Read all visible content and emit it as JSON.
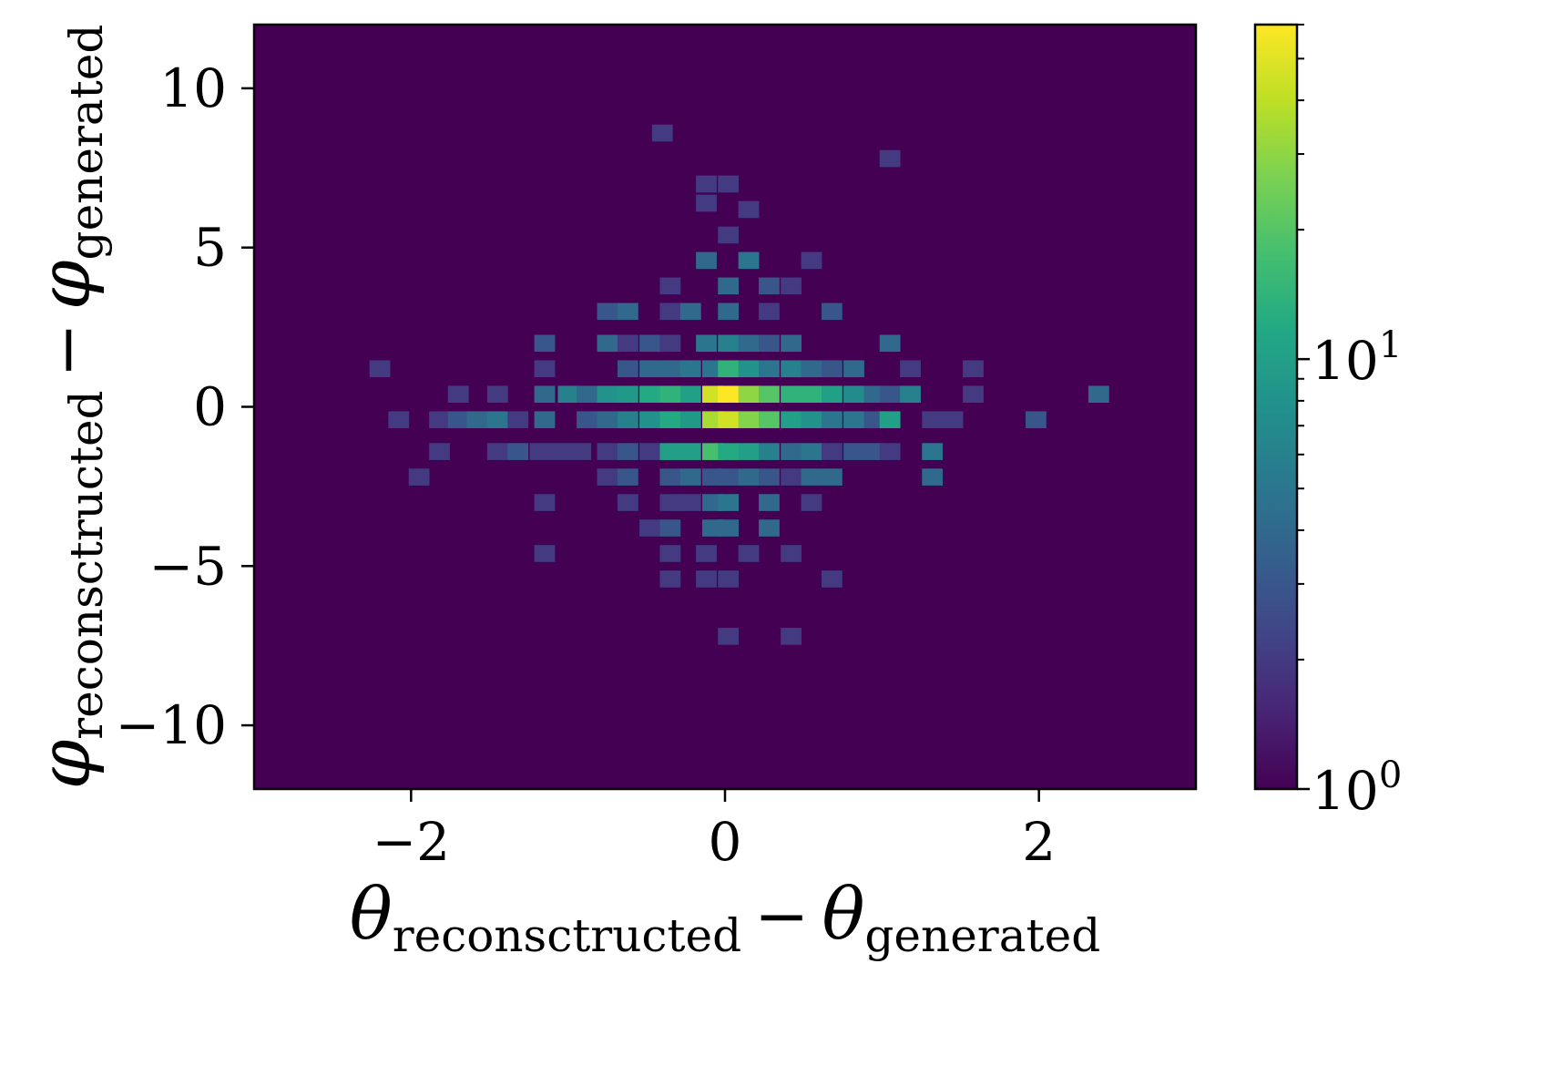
{
  "chart_data": {
    "type": "heatmap",
    "title": "",
    "xlabel": {
      "main": "θ",
      "sub1": "reconsctructed",
      "minus": "−",
      "main2": "θ",
      "sub2": "generated"
    },
    "ylabel": {
      "main": "φ",
      "sub1": "reconsctructed",
      "minus": "−",
      "main2": "φ",
      "sub2": "generated"
    },
    "xlim": [
      -3,
      3
    ],
    "ylim": [
      -12,
      12
    ],
    "x_bin_width": 0.13,
    "y_bin_width": 0.52,
    "x_ticks": [
      {
        "value": -2,
        "label": "−2"
      },
      {
        "value": 0,
        "label": "0"
      },
      {
        "value": 2,
        "label": "2"
      }
    ],
    "y_ticks": [
      {
        "value": 10,
        "label": "10"
      },
      {
        "value": 5,
        "label": "5"
      },
      {
        "value": 0,
        "label": "0"
      },
      {
        "value": -5,
        "label": "−5"
      },
      {
        "value": -10,
        "label": "−10"
      }
    ],
    "colorbar": {
      "scale": "log",
      "colormap": "viridis",
      "range": [
        1,
        60
      ],
      "ticks": [
        {
          "value": 1,
          "label": "10",
          "exp": "0"
        },
        {
          "value": 10,
          "label": "10",
          "exp": "1"
        }
      ]
    },
    "background_color": "#440154",
    "bins": [
      {
        "x": -0.4,
        "y": 8.6,
        "count": 2
      },
      {
        "x": 1.05,
        "y": 7.8,
        "count": 2
      },
      {
        "x": -0.12,
        "y": 7.0,
        "count": 2
      },
      {
        "x": 0.02,
        "y": 7.0,
        "count": 2
      },
      {
        "x": -0.12,
        "y": 6.4,
        "count": 2
      },
      {
        "x": 0.15,
        "y": 6.2,
        "count": 2
      },
      {
        "x": 0.02,
        "y": 5.4,
        "count": 2
      },
      {
        "x": -0.12,
        "y": 4.6,
        "count": 4
      },
      {
        "x": 0.15,
        "y": 4.6,
        "count": 5
      },
      {
        "x": 0.55,
        "y": 4.6,
        "count": 2
      },
      {
        "x": -0.35,
        "y": 3.8,
        "count": 2
      },
      {
        "x": 0.02,
        "y": 3.8,
        "count": 4
      },
      {
        "x": 0.28,
        "y": 3.8,
        "count": 3
      },
      {
        "x": 0.42,
        "y": 3.8,
        "count": 2
      },
      {
        "x": -0.75,
        "y": 3.0,
        "count": 3
      },
      {
        "x": -0.62,
        "y": 3.0,
        "count": 4
      },
      {
        "x": -0.35,
        "y": 3.0,
        "count": 2
      },
      {
        "x": -0.22,
        "y": 3.0,
        "count": 4
      },
      {
        "x": 0.02,
        "y": 3.0,
        "count": 4
      },
      {
        "x": 0.28,
        "y": 3.0,
        "count": 2
      },
      {
        "x": 0.68,
        "y": 3.0,
        "count": 3
      },
      {
        "x": -1.15,
        "y": 2.0,
        "count": 3
      },
      {
        "x": -0.75,
        "y": 2.0,
        "count": 4
      },
      {
        "x": -0.62,
        "y": 2.0,
        "count": 2
      },
      {
        "x": -0.48,
        "y": 2.0,
        "count": 3
      },
      {
        "x": -0.35,
        "y": 2.0,
        "count": 2
      },
      {
        "x": -0.12,
        "y": 2.0,
        "count": 5
      },
      {
        "x": 0.02,
        "y": 2.0,
        "count": 6
      },
      {
        "x": 0.15,
        "y": 2.0,
        "count": 4
      },
      {
        "x": 0.28,
        "y": 2.0,
        "count": 3
      },
      {
        "x": 0.42,
        "y": 2.0,
        "count": 4
      },
      {
        "x": 1.05,
        "y": 2.0,
        "count": 4
      },
      {
        "x": -2.2,
        "y": 1.2,
        "count": 2
      },
      {
        "x": -1.15,
        "y": 1.2,
        "count": 2
      },
      {
        "x": -0.62,
        "y": 1.2,
        "count": 3
      },
      {
        "x": -0.48,
        "y": 1.2,
        "count": 4
      },
      {
        "x": -0.35,
        "y": 1.2,
        "count": 4
      },
      {
        "x": -0.22,
        "y": 1.2,
        "count": 5
      },
      {
        "x": -0.08,
        "y": 1.2,
        "count": 5
      },
      {
        "x": 0.02,
        "y": 1.2,
        "count": 14
      },
      {
        "x": 0.15,
        "y": 1.2,
        "count": 8
      },
      {
        "x": 0.28,
        "y": 1.2,
        "count": 5
      },
      {
        "x": 0.42,
        "y": 1.2,
        "count": 6
      },
      {
        "x": 0.55,
        "y": 1.2,
        "count": 4
      },
      {
        "x": 0.68,
        "y": 1.2,
        "count": 3
      },
      {
        "x": 0.82,
        "y": 1.2,
        "count": 4
      },
      {
        "x": 1.18,
        "y": 1.2,
        "count": 2
      },
      {
        "x": 1.58,
        "y": 1.2,
        "count": 2
      },
      {
        "x": -1.7,
        "y": 0.4,
        "count": 2
      },
      {
        "x": -1.45,
        "y": 0.4,
        "count": 2
      },
      {
        "x": -1.15,
        "y": 0.4,
        "count": 4
      },
      {
        "x": -1.0,
        "y": 0.4,
        "count": 6
      },
      {
        "x": -0.88,
        "y": 0.4,
        "count": 4
      },
      {
        "x": -0.75,
        "y": 0.4,
        "count": 8
      },
      {
        "x": -0.62,
        "y": 0.4,
        "count": 9
      },
      {
        "x": -0.48,
        "y": 0.4,
        "count": 12
      },
      {
        "x": -0.35,
        "y": 0.4,
        "count": 14
      },
      {
        "x": -0.22,
        "y": 0.4,
        "count": 10
      },
      {
        "x": -0.08,
        "y": 0.4,
        "count": 45
      },
      {
        "x": 0.02,
        "y": 0.4,
        "count": 60
      },
      {
        "x": 0.15,
        "y": 0.4,
        "count": 30
      },
      {
        "x": 0.28,
        "y": 0.4,
        "count": 20
      },
      {
        "x": 0.42,
        "y": 0.4,
        "count": 14
      },
      {
        "x": 0.55,
        "y": 0.4,
        "count": 14
      },
      {
        "x": 0.68,
        "y": 0.4,
        "count": 10
      },
      {
        "x": 0.82,
        "y": 0.4,
        "count": 7
      },
      {
        "x": 0.95,
        "y": 0.4,
        "count": 4
      },
      {
        "x": 1.05,
        "y": 0.4,
        "count": 3
      },
      {
        "x": 1.18,
        "y": 0.4,
        "count": 6
      },
      {
        "x": 1.58,
        "y": 0.4,
        "count": 2
      },
      {
        "x": 2.38,
        "y": 0.4,
        "count": 4
      },
      {
        "x": -2.08,
        "y": -0.4,
        "count": 2
      },
      {
        "x": -1.82,
        "y": -0.4,
        "count": 2
      },
      {
        "x": -1.7,
        "y": -0.4,
        "count": 3
      },
      {
        "x": -1.58,
        "y": -0.4,
        "count": 4
      },
      {
        "x": -1.45,
        "y": -0.4,
        "count": 5
      },
      {
        "x": -1.32,
        "y": -0.4,
        "count": 2
      },
      {
        "x": -1.15,
        "y": -0.4,
        "count": 4
      },
      {
        "x": -0.88,
        "y": -0.4,
        "count": 3
      },
      {
        "x": -0.75,
        "y": -0.4,
        "count": 4
      },
      {
        "x": -0.62,
        "y": -0.4,
        "count": 6
      },
      {
        "x": -0.48,
        "y": -0.4,
        "count": 8
      },
      {
        "x": -0.35,
        "y": -0.4,
        "count": 12
      },
      {
        "x": -0.22,
        "y": -0.4,
        "count": 9
      },
      {
        "x": -0.08,
        "y": -0.4,
        "count": 35
      },
      {
        "x": 0.02,
        "y": -0.4,
        "count": 45
      },
      {
        "x": 0.15,
        "y": -0.4,
        "count": 28
      },
      {
        "x": 0.28,
        "y": -0.4,
        "count": 20
      },
      {
        "x": 0.42,
        "y": -0.4,
        "count": 10
      },
      {
        "x": 0.55,
        "y": -0.4,
        "count": 8
      },
      {
        "x": 0.68,
        "y": -0.4,
        "count": 5
      },
      {
        "x": 0.82,
        "y": -0.4,
        "count": 5
      },
      {
        "x": 0.95,
        "y": -0.4,
        "count": 3
      },
      {
        "x": 1.05,
        "y": -0.4,
        "count": 10
      },
      {
        "x": 1.32,
        "y": -0.4,
        "count": 2
      },
      {
        "x": 1.45,
        "y": -0.4,
        "count": 2
      },
      {
        "x": 1.98,
        "y": -0.4,
        "count": 3
      },
      {
        "x": -1.82,
        "y": -1.4,
        "count": 2
      },
      {
        "x": -1.45,
        "y": -1.4,
        "count": 2
      },
      {
        "x": -1.32,
        "y": -1.4,
        "count": 3
      },
      {
        "x": -1.18,
        "y": -1.4,
        "count": 2
      },
      {
        "x": -1.05,
        "y": -1.4,
        "count": 2
      },
      {
        "x": -0.92,
        "y": -1.4,
        "count": 2
      },
      {
        "x": -0.75,
        "y": -1.4,
        "count": 2
      },
      {
        "x": -0.62,
        "y": -1.4,
        "count": 3
      },
      {
        "x": -0.48,
        "y": -1.4,
        "count": 2
      },
      {
        "x": -0.35,
        "y": -1.4,
        "count": 10
      },
      {
        "x": -0.22,
        "y": -1.4,
        "count": 10
      },
      {
        "x": -0.08,
        "y": -1.4,
        "count": 18
      },
      {
        "x": 0.02,
        "y": -1.4,
        "count": 12
      },
      {
        "x": 0.15,
        "y": -1.4,
        "count": 10
      },
      {
        "x": 0.28,
        "y": -1.4,
        "count": 6
      },
      {
        "x": 0.42,
        "y": -1.4,
        "count": 4
      },
      {
        "x": 0.55,
        "y": -1.4,
        "count": 5
      },
      {
        "x": 0.68,
        "y": -1.4,
        "count": 2
      },
      {
        "x": 0.82,
        "y": -1.4,
        "count": 3
      },
      {
        "x": 0.95,
        "y": -1.4,
        "count": 3
      },
      {
        "x": 1.05,
        "y": -1.4,
        "count": 2
      },
      {
        "x": 1.32,
        "y": -1.4,
        "count": 5
      },
      {
        "x": -1.95,
        "y": -2.2,
        "count": 2
      },
      {
        "x": -0.75,
        "y": -2.2,
        "count": 2
      },
      {
        "x": -0.62,
        "y": -2.2,
        "count": 3
      },
      {
        "x": -0.35,
        "y": -2.2,
        "count": 3
      },
      {
        "x": -0.22,
        "y": -2.2,
        "count": 4
      },
      {
        "x": -0.08,
        "y": -2.2,
        "count": 3
      },
      {
        "x": 0.02,
        "y": -2.2,
        "count": 3
      },
      {
        "x": 0.15,
        "y": -2.2,
        "count": 4
      },
      {
        "x": 0.28,
        "y": -2.2,
        "count": 3
      },
      {
        "x": 0.42,
        "y": -2.2,
        "count": 2
      },
      {
        "x": 0.55,
        "y": -2.2,
        "count": 4
      },
      {
        "x": 0.68,
        "y": -2.2,
        "count": 4
      },
      {
        "x": 1.32,
        "y": -2.2,
        "count": 4
      },
      {
        "x": -1.15,
        "y": -3.0,
        "count": 2
      },
      {
        "x": -0.62,
        "y": -3.0,
        "count": 2
      },
      {
        "x": -0.35,
        "y": -3.0,
        "count": 2
      },
      {
        "x": -0.22,
        "y": -3.0,
        "count": 2
      },
      {
        "x": -0.08,
        "y": -3.0,
        "count": 4
      },
      {
        "x": 0.02,
        "y": -3.0,
        "count": 5
      },
      {
        "x": 0.28,
        "y": -3.0,
        "count": 4
      },
      {
        "x": 0.55,
        "y": -3.0,
        "count": 2
      },
      {
        "x": -0.48,
        "y": -3.8,
        "count": 2
      },
      {
        "x": -0.35,
        "y": -3.8,
        "count": 3
      },
      {
        "x": -0.08,
        "y": -3.8,
        "count": 4
      },
      {
        "x": 0.02,
        "y": -3.8,
        "count": 4
      },
      {
        "x": 0.28,
        "y": -3.8,
        "count": 4
      },
      {
        "x": -1.15,
        "y": -4.6,
        "count": 2
      },
      {
        "x": -0.35,
        "y": -4.6,
        "count": 2
      },
      {
        "x": -0.12,
        "y": -4.6,
        "count": 2
      },
      {
        "x": 0.15,
        "y": -4.6,
        "count": 2
      },
      {
        "x": 0.42,
        "y": -4.6,
        "count": 2
      },
      {
        "x": -0.35,
        "y": -5.4,
        "count": 2
      },
      {
        "x": -0.12,
        "y": -5.4,
        "count": 2
      },
      {
        "x": 0.02,
        "y": -5.4,
        "count": 2
      },
      {
        "x": 0.68,
        "y": -5.4,
        "count": 2
      },
      {
        "x": 0.02,
        "y": -7.2,
        "count": 2
      },
      {
        "x": 0.42,
        "y": -7.2,
        "count": 2
      }
    ]
  }
}
